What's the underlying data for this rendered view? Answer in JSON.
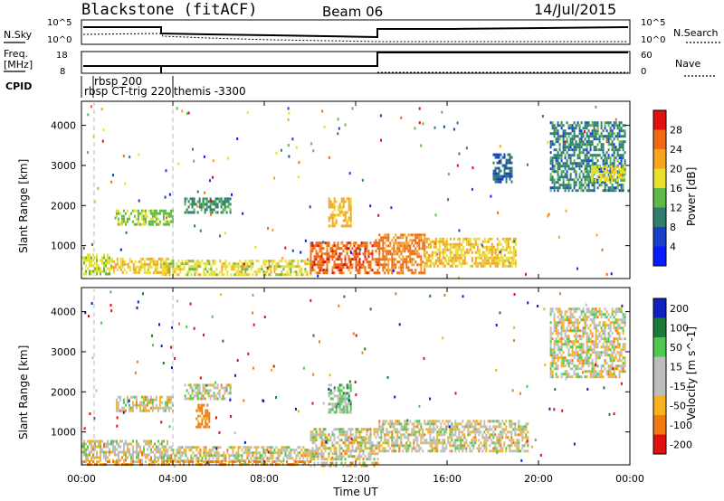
{
  "header": {
    "radar": "Blackstone (fitACF)",
    "beam": "Beam 06",
    "date": "14/Jul/2015"
  },
  "noise_panel": {
    "left_label": "N.Sky",
    "right_label": "N.Search",
    "left_ticks": [
      "10^5",
      "10^0"
    ],
    "right_ticks": [
      "10^5",
      "10^0"
    ]
  },
  "freq_panel": {
    "left_label_1": "Freq.",
    "left_label_2": "[MHz]",
    "right_label": "Nave",
    "left_ticks": [
      "18",
      "8"
    ],
    "right_ticks": [
      "60",
      "0"
    ]
  },
  "cpid_panel": {
    "label": "CPID",
    "annotations": [
      "rbsp 200",
      "rbsp CT-trig 220",
      "themis -3300"
    ]
  },
  "power_colorbar": {
    "title": "Power [dB]",
    "ticks": [
      "4",
      "8",
      "12",
      "16",
      "20",
      "24",
      "28"
    ],
    "colors": [
      "#0a1aff",
      "#1a3fc8",
      "#2f7d6e",
      "#5fb848",
      "#e8e02a",
      "#f5a51e",
      "#f06a14",
      "#e01010"
    ]
  },
  "velocity_colorbar": {
    "title": "Velocity [m s^-1]",
    "ticks": [
      "200",
      "100",
      "50",
      "15",
      "-15",
      "-50",
      "-100",
      "-200"
    ],
    "colors": [
      "#1020c0",
      "#1c7a3a",
      "#4fc84f",
      "#bdbdbd",
      "#bdbdbd",
      "#f5b21e",
      "#f07a10",
      "#e01010"
    ]
  },
  "x_axis": {
    "label": "Time UT",
    "ticks": [
      "00:00",
      "04:00",
      "08:00",
      "12:00",
      "16:00",
      "20:00",
      "00:00"
    ]
  },
  "y_axis": {
    "label": "Slant Range [km]",
    "ticks": [
      "1000",
      "2000",
      "3000",
      "4000"
    ]
  },
  "chart_data": [
    {
      "type": "heatmap",
      "title": "Power [dB]",
      "xlabel": "Time UT",
      "ylabel": "Slant Range [km]",
      "xlim": [
        0,
        24
      ],
      "ylim": [
        180,
        4600
      ],
      "clim": [
        0,
        32
      ],
      "regions": [
        {
          "t": [
            0.0,
            1.3
          ],
          "r": [
            300,
            800
          ],
          "v": 17
        },
        {
          "t": [
            1.3,
            3.8
          ],
          "r": [
            300,
            700
          ],
          "v": 20
        },
        {
          "t": [
            1.5,
            4.0
          ],
          "r": [
            1500,
            1900
          ],
          "v": 15
        },
        {
          "t": [
            4.5,
            6.5
          ],
          "r": [
            1800,
            2200
          ],
          "v": 11
        },
        {
          "t": [
            3.5,
            10.0
          ],
          "r": [
            250,
            650
          ],
          "v": 18
        },
        {
          "t": [
            10.0,
            13.0
          ],
          "r": [
            300,
            1100
          ],
          "v": 26
        },
        {
          "t": [
            10.8,
            11.8
          ],
          "r": [
            1500,
            2200
          ],
          "v": 21
        },
        {
          "t": [
            13.0,
            15.0
          ],
          "r": [
            300,
            1300
          ],
          "v": 25
        },
        {
          "t": [
            15.0,
            19.0
          ],
          "r": [
            500,
            1200
          ],
          "v": 20
        },
        {
          "t": [
            18.0,
            18.8
          ],
          "r": [
            2600,
            3300
          ],
          "v": 8
        },
        {
          "t": [
            20.5,
            23.8
          ],
          "r": [
            2400,
            4100
          ],
          "v": 10
        },
        {
          "t": [
            22.3,
            23.8
          ],
          "r": [
            2600,
            3000
          ],
          "v": 18
        }
      ]
    },
    {
      "type": "heatmap",
      "title": "Velocity [m s^-1]",
      "xlabel": "Time UT",
      "ylabel": "Slant Range [km]",
      "xlim": [
        0,
        24
      ],
      "ylim": [
        180,
        4600
      ],
      "clim": [
        -250,
        250
      ],
      "regions": [
        {
          "t": [
            0.0,
            3.8
          ],
          "r": [
            300,
            800
          ],
          "v": 0
        },
        {
          "t": [
            1.5,
            4.0
          ],
          "r": [
            1500,
            1900
          ],
          "v": 0
        },
        {
          "t": [
            4.5,
            6.5
          ],
          "r": [
            1800,
            2200
          ],
          "v": 0
        },
        {
          "t": [
            3.5,
            10.0
          ],
          "r": [
            250,
            650
          ],
          "v": 0
        },
        {
          "t": [
            10.0,
            13.0
          ],
          "r": [
            300,
            1100
          ],
          "v": 0
        },
        {
          "t": [
            10.8,
            11.8
          ],
          "r": [
            1500,
            2200
          ],
          "v": 40
        },
        {
          "t": [
            13.0,
            19.5
          ],
          "r": [
            500,
            1300
          ],
          "v": 0
        },
        {
          "t": [
            0.0,
            10.0
          ],
          "r": [
            190,
            290
          ],
          "v": -40
        },
        {
          "t": [
            5.0,
            5.6
          ],
          "r": [
            1100,
            1700
          ],
          "v": -70
        },
        {
          "t": [
            20.5,
            23.8
          ],
          "r": [
            2400,
            4100
          ],
          "v": 0
        },
        {
          "t": [
            10.0,
            13.0
          ],
          "r": [
            190,
            260
          ],
          "v": -10
        }
      ]
    }
  ]
}
